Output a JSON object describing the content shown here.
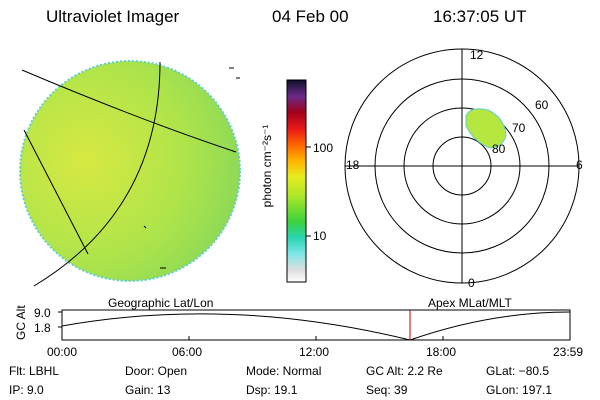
{
  "header": {
    "instrument": "Ultraviolet Imager",
    "date": "04 Feb 00",
    "time": "16:37:05 UT"
  },
  "colorbar": {
    "unit_label": "photon cm⁻²s⁻¹",
    "ticks": [
      "100",
      "10"
    ]
  },
  "polar_plot": {
    "mlt_labels": {
      "top": "12",
      "left": "18",
      "right": "6",
      "bottom": "0"
    },
    "lat_labels": [
      "60",
      "70",
      "80"
    ]
  },
  "timeline": {
    "left_label": "Geographic Lat/Lon",
    "right_label": "Apex MLat/MLT",
    "axis_title": "GC Alt",
    "y_ticks": [
      "9.0",
      "1.8"
    ],
    "x_ticks": [
      "00:00",
      "06:00",
      "12:00",
      "18:00",
      "23:59"
    ],
    "cursor_time": "16:37"
  },
  "footer": {
    "flt": "Flt: LBHL",
    "ip": "IP:  9.0",
    "door": "Door: Open",
    "gain": "Gain: 13",
    "mode": "Mode: Normal",
    "dsp": "Dsp:   19.1",
    "gcalt": "GC Alt: 2.2 Re",
    "seq": "Seq: 39",
    "glat": "GLat: −80.5",
    "glon": "GLon: 197.1"
  }
}
